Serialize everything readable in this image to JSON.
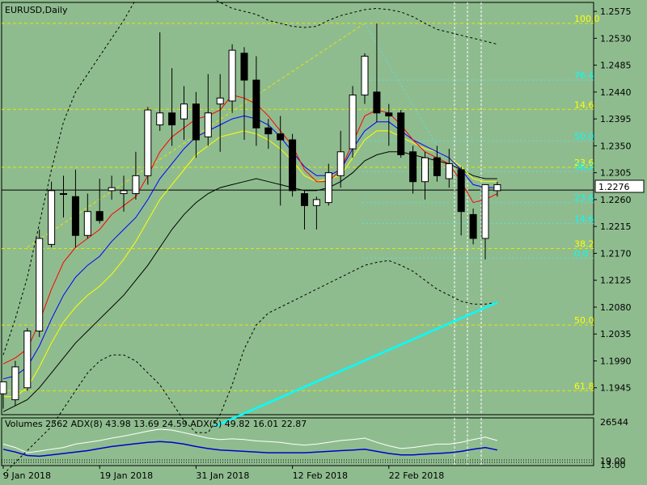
{
  "chart_data": {
    "type": "candlestick",
    "title": "EURUSD,Daily",
    "symbol": "EURUSD",
    "timeframe": "Daily",
    "background": "#8fbc8f",
    "ylim": [
      1.19,
      1.259
    ],
    "y_ticks": [
      "1.2575",
      "1.2530",
      "1.2485",
      "1.2440",
      "1.2395",
      "1.2350",
      "1.2305",
      "1.2260",
      "1.2215",
      "1.2170",
      "1.2125",
      "1.2080",
      "1.2035",
      "1.1990",
      "1.1945"
    ],
    "current_price": "1.2276",
    "x_labels": [
      {
        "label": "9 Jan 2018",
        "index": 0
      },
      {
        "label": "19 Jan 2018",
        "index": 8
      },
      {
        "label": "31 Jan 2018",
        "index": 16
      },
      {
        "label": "12 Feb 2018",
        "index": 24
      },
      {
        "label": "22 Feb 2018",
        "index": 32
      }
    ],
    "candles": [
      {
        "o": 1.1935,
        "h": 1.1955,
        "l": 1.191,
        "c": 1.1955
      },
      {
        "o": 1.1925,
        "h": 1.199,
        "l": 1.1915,
        "c": 1.198
      },
      {
        "o": 1.1945,
        "h": 1.2045,
        "l": 1.194,
        "c": 1.204
      },
      {
        "o": 1.204,
        "h": 1.221,
        "l": 1.203,
        "c": 1.2195
      },
      {
        "o": 1.2185,
        "h": 1.229,
        "l": 1.218,
        "c": 1.2275
      },
      {
        "o": 1.227,
        "h": 1.23,
        "l": 1.223,
        "c": 1.227
      },
      {
        "o": 1.2265,
        "h": 1.231,
        "l": 1.218,
        "c": 1.22
      },
      {
        "o": 1.22,
        "h": 1.227,
        "l": 1.2195,
        "c": 1.224
      },
      {
        "o": 1.224,
        "h": 1.2295,
        "l": 1.222,
        "c": 1.2225
      },
      {
        "o": 1.2275,
        "h": 1.23,
        "l": 1.226,
        "c": 1.228
      },
      {
        "o": 1.227,
        "h": 1.23,
        "l": 1.224,
        "c": 1.2275
      },
      {
        "o": 1.227,
        "h": 1.234,
        "l": 1.226,
        "c": 1.23
      },
      {
        "o": 1.23,
        "h": 1.2415,
        "l": 1.2285,
        "c": 1.241
      },
      {
        "o": 1.2385,
        "h": 1.254,
        "l": 1.2375,
        "c": 1.2405
      },
      {
        "o": 1.2405,
        "h": 1.248,
        "l": 1.235,
        "c": 1.2385
      },
      {
        "o": 1.2395,
        "h": 1.245,
        "l": 1.236,
        "c": 1.242
      },
      {
        "o": 1.242,
        "h": 1.244,
        "l": 1.233,
        "c": 1.236
      },
      {
        "o": 1.2365,
        "h": 1.247,
        "l": 1.235,
        "c": 1.2405
      },
      {
        "o": 1.242,
        "h": 1.247,
        "l": 1.234,
        "c": 1.243
      },
      {
        "o": 1.2425,
        "h": 1.252,
        "l": 1.2405,
        "c": 1.251
      },
      {
        "o": 1.2505,
        "h": 1.2515,
        "l": 1.236,
        "c": 1.246
      },
      {
        "o": 1.246,
        "h": 1.25,
        "l": 1.235,
        "c": 1.238
      },
      {
        "o": 1.238,
        "h": 1.2395,
        "l": 1.2345,
        "c": 1.237
      },
      {
        "o": 1.237,
        "h": 1.24,
        "l": 1.225,
        "c": 1.236
      },
      {
        "o": 1.236,
        "h": 1.237,
        "l": 1.2265,
        "c": 1.2275
      },
      {
        "o": 1.227,
        "h": 1.2275,
        "l": 1.221,
        "c": 1.225
      },
      {
        "o": 1.225,
        "h": 1.2265,
        "l": 1.221,
        "c": 1.226
      },
      {
        "o": 1.2255,
        "h": 1.232,
        "l": 1.225,
        "c": 1.2305
      },
      {
        "o": 1.23,
        "h": 1.2375,
        "l": 1.228,
        "c": 1.234
      },
      {
        "o": 1.2345,
        "h": 1.245,
        "l": 1.233,
        "c": 1.2435
      },
      {
        "o": 1.2435,
        "h": 1.2505,
        "l": 1.242,
        "c": 1.25
      },
      {
        "o": 1.244,
        "h": 1.2555,
        "l": 1.239,
        "c": 1.2405
      },
      {
        "o": 1.2405,
        "h": 1.242,
        "l": 1.235,
        "c": 1.24
      },
      {
        "o": 1.2405,
        "h": 1.241,
        "l": 1.233,
        "c": 1.2335
      },
      {
        "o": 1.234,
        "h": 1.235,
        "l": 1.227,
        "c": 1.229
      },
      {
        "o": 1.229,
        "h": 1.234,
        "l": 1.226,
        "c": 1.233
      },
      {
        "o": 1.233,
        "h": 1.235,
        "l": 1.229,
        "c": 1.23
      },
      {
        "o": 1.2295,
        "h": 1.2345,
        "l": 1.228,
        "c": 1.232
      },
      {
        "o": 1.231,
        "h": 1.2315,
        "l": 1.22,
        "c": 1.224
      },
      {
        "o": 1.2235,
        "h": 1.2245,
        "l": 1.2185,
        "c": 1.2195
      },
      {
        "o": 1.2195,
        "h": 1.228,
        "l": 1.216,
        "c": 1.2285
      },
      {
        "o": 1.2275,
        "h": 1.229,
        "l": 1.2265,
        "c": 1.2285
      }
    ],
    "ma_red": [
      1.1985,
      1.1995,
      1.201,
      1.2055,
      1.211,
      1.2155,
      1.218,
      1.2195,
      1.221,
      1.2235,
      1.225,
      1.2265,
      1.23,
      1.234,
      1.2365,
      1.238,
      1.2395,
      1.24,
      1.241,
      1.2435,
      1.243,
      1.242,
      1.24,
      1.2375,
      1.235,
      1.231,
      1.229,
      1.229,
      1.231,
      1.2355,
      1.24,
      1.241,
      1.2405,
      1.2385,
      1.236,
      1.234,
      1.233,
      1.232,
      1.229,
      1.2255,
      1.226,
      1.227
    ],
    "ma_blue": [
      1.196,
      1.1965,
      1.198,
      1.2015,
      1.206,
      1.21,
      1.213,
      1.215,
      1.2165,
      1.219,
      1.221,
      1.223,
      1.226,
      1.2295,
      1.232,
      1.2345,
      1.2365,
      1.2375,
      1.2385,
      1.2395,
      1.24,
      1.2395,
      1.2385,
      1.2365,
      1.234,
      1.2315,
      1.23,
      1.23,
      1.231,
      1.2345,
      1.2375,
      1.239,
      1.239,
      1.2375,
      1.236,
      1.235,
      1.234,
      1.233,
      1.231,
      1.2285,
      1.228,
      1.228
    ],
    "ma_yellow": [
      1.193,
      1.193,
      1.1945,
      1.198,
      1.202,
      1.2055,
      1.208,
      1.21,
      1.2115,
      1.2135,
      1.216,
      1.219,
      1.2225,
      1.226,
      1.2285,
      1.231,
      1.2335,
      1.235,
      1.2365,
      1.237,
      1.2375,
      1.237,
      1.236,
      1.2345,
      1.2325,
      1.23,
      1.229,
      1.2295,
      1.23,
      1.233,
      1.236,
      1.2375,
      1.2375,
      1.2365,
      1.2355,
      1.2345,
      1.234,
      1.233,
      1.2315,
      1.2295,
      1.229,
      1.229
    ],
    "ma_black": [
      1.1905,
      1.1915,
      1.1925,
      1.1945,
      1.197,
      1.1995,
      1.202,
      1.204,
      1.206,
      1.208,
      1.21,
      1.2125,
      1.215,
      1.218,
      1.221,
      1.2235,
      1.2255,
      1.227,
      1.228,
      1.2285,
      1.229,
      1.2295,
      1.229,
      1.2285,
      1.228,
      1.2275,
      1.2275,
      1.228,
      1.229,
      1.2305,
      1.2325,
      1.2335,
      1.234,
      1.234,
      1.2335,
      1.233,
      1.2325,
      1.232,
      1.231,
      1.23,
      1.2295,
      1.2295
    ],
    "bb_upper": [
      1.2,
      1.206,
      1.213,
      1.222,
      1.231,
      1.239,
      1.244,
      1.247,
      1.25,
      1.253,
      1.256,
      1.2595,
      1.262,
      1.264,
      1.264,
      1.263,
      1.262,
      1.26,
      1.259,
      1.258,
      1.2575,
      1.257,
      1.256,
      1.2555,
      1.255,
      1.2548,
      1.255,
      1.256,
      1.2568,
      1.2573,
      1.2578,
      1.258,
      1.2578,
      1.2574,
      1.2566,
      1.2555,
      1.2545,
      1.254,
      1.2535,
      1.253,
      1.2525,
      1.252
    ],
    "bb_lower": [
      1.18,
      1.182,
      1.184,
      1.186,
      1.188,
      1.191,
      1.194,
      1.197,
      1.199,
      1.2,
      1.2,
      1.199,
      1.197,
      1.195,
      1.192,
      1.189,
      1.187,
      1.187,
      1.19,
      1.195,
      1.201,
      1.205,
      1.207,
      1.208,
      1.209,
      1.21,
      1.211,
      1.212,
      1.213,
      1.214,
      1.215,
      1.2155,
      1.2158,
      1.215,
      1.214,
      1.2125,
      1.211,
      1.21,
      1.209,
      1.2085,
      1.2085,
      1.2088
    ],
    "fib_yellow": [
      {
        "label": "100.0",
        "price": 1.2555
      },
      {
        "label": "14.6",
        "price": 1.2411
      },
      {
        "label": "23.6",
        "price": 1.2314
      },
      {
        "label": "38.2",
        "price": 1.2178
      },
      {
        "label": "50.0",
        "price": 1.205
      },
      {
        "label": "61.8",
        "price": 1.194
      }
    ],
    "fib_cyan": [
      {
        "label": "76.4",
        "price": 1.246
      },
      {
        "label": "50.0",
        "price": 1.2358
      },
      {
        "label": "38.2",
        "price": 1.2307
      },
      {
        "label": "23.6",
        "price": 1.2255
      },
      {
        "label": "14.6",
        "price": 1.222
      },
      {
        "label": "0.0",
        "price": 1.2162
      }
    ],
    "trendline": {
      "from": {
        "index": 17.5,
        "price": 1.188
      },
      "to": {
        "index": 41,
        "price": 1.2088
      },
      "color": "#00ffff"
    },
    "indicator_panel": {
      "header": "Volumes 2562 ADX(8) 43.98 13.69 24.59 ADX(5) 49.82 16.01 22.87",
      "y_ticks": [
        "26544",
        "19.00",
        "13.00"
      ],
      "white_line": [
        0.55,
        0.45,
        0.3,
        0.35,
        0.4,
        0.45,
        0.55,
        0.6,
        0.65,
        0.72,
        0.78,
        0.85,
        0.92,
        0.98,
        0.95,
        0.88,
        0.8,
        0.72,
        0.68,
        0.7,
        0.68,
        0.64,
        0.62,
        0.6,
        0.55,
        0.52,
        0.55,
        0.6,
        0.65,
        0.68,
        0.72,
        0.6,
        0.5,
        0.42,
        0.45,
        0.5,
        0.55,
        0.55,
        0.6,
        0.68,
        0.75,
        0.65
      ],
      "blue_line": [
        0.4,
        0.32,
        0.22,
        0.2,
        0.24,
        0.28,
        0.32,
        0.36,
        0.42,
        0.48,
        0.52,
        0.56,
        0.6,
        0.62,
        0.6,
        0.55,
        0.48,
        0.42,
        0.38,
        0.36,
        0.34,
        0.32,
        0.3,
        0.3,
        0.3,
        0.3,
        0.32,
        0.34,
        0.36,
        0.38,
        0.4,
        0.34,
        0.28,
        0.24,
        0.24,
        0.26,
        0.28,
        0.3,
        0.34,
        0.4,
        0.45,
        0.38
      ]
    }
  }
}
